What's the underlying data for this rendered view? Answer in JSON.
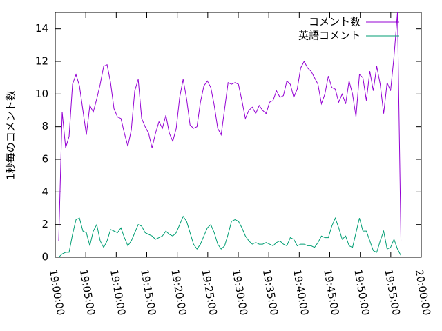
{
  "chart_data": {
    "type": "line",
    "y_label": "1秒毎のコメント数",
    "x": [
      "19:00:34",
      "19:01:08",
      "19:01:42",
      "19:02:16",
      "19:02:50",
      "19:03:24",
      "19:03:58",
      "19:04:32",
      "19:05:06",
      "19:05:40",
      "19:06:14",
      "19:06:48",
      "19:07:22",
      "19:07:56",
      "19:08:30",
      "19:09:04",
      "19:09:38",
      "19:10:12",
      "19:10:46",
      "19:11:20",
      "19:11:54",
      "19:12:28",
      "19:13:02",
      "19:13:36",
      "19:14:10",
      "19:14:44",
      "19:15:18",
      "19:15:52",
      "19:16:26",
      "19:17:00",
      "19:17:34",
      "19:18:08",
      "19:18:42",
      "19:19:16",
      "19:19:50",
      "19:20:24",
      "19:20:58",
      "19:21:32",
      "19:22:06",
      "19:22:40",
      "19:23:14",
      "19:23:48",
      "19:24:22",
      "19:24:56",
      "19:25:30",
      "19:26:04",
      "19:26:38",
      "19:27:12",
      "19:27:46",
      "19:28:20",
      "19:28:54",
      "19:29:28",
      "19:30:02",
      "19:30:36",
      "19:31:10",
      "19:31:44",
      "19:32:18",
      "19:32:52",
      "19:33:26",
      "19:34:00",
      "19:34:34",
      "19:35:08",
      "19:35:42",
      "19:36:16",
      "19:36:50",
      "19:37:24",
      "19:37:58",
      "19:38:32",
      "19:39:06",
      "19:39:40",
      "19:40:14",
      "19:40:48",
      "19:41:22",
      "19:41:56",
      "19:42:30",
      "19:43:04",
      "19:43:38",
      "19:44:12",
      "19:44:46",
      "19:45:20",
      "19:45:54",
      "19:46:28",
      "19:47:02",
      "19:47:36",
      "19:48:10",
      "19:48:44",
      "19:49:18",
      "19:49:52",
      "19:50:26",
      "19:51:00",
      "19:51:34",
      "19:52:08",
      "19:52:42",
      "19:53:16",
      "19:53:50",
      "19:54:24",
      "19:54:58",
      "19:55:32",
      "19:56:06",
      "19:56:40"
    ],
    "series": [
      {
        "name": "コメント数",
        "color": "#9400d3",
        "values": [
          1.0,
          8.9,
          6.7,
          7.4,
          10.6,
          11.2,
          10.5,
          9.0,
          7.5,
          9.3,
          8.9,
          9.7,
          10.6,
          11.7,
          11.8,
          10.7,
          9.1,
          8.6,
          8.5,
          7.6,
          6.8,
          7.8,
          10.2,
          10.9,
          8.5,
          8.0,
          7.6,
          6.7,
          7.6,
          8.3,
          7.9,
          8.7,
          7.6,
          7.1,
          7.9,
          9.8,
          10.9,
          9.7,
          8.1,
          7.9,
          8.0,
          9.5,
          10.5,
          10.8,
          10.4,
          9.3,
          7.9,
          7.5,
          9.1,
          10.7,
          10.6,
          10.7,
          10.6,
          9.6,
          8.5,
          9.0,
          9.2,
          8.8,
          9.3,
          9.0,
          8.8,
          9.5,
          9.6,
          10.2,
          9.8,
          9.9,
          10.8,
          10.6,
          9.8,
          10.3,
          11.6,
          12.0,
          11.6,
          11.4,
          11.0,
          10.6,
          9.4,
          10.0,
          11.1,
          10.4,
          10.3,
          9.5,
          10.0,
          9.4,
          10.8,
          10.0,
          8.6,
          11.2,
          11.0,
          9.6,
          11.4,
          10.2,
          11.7,
          10.6,
          8.8,
          10.7,
          10.2,
          12.3,
          15.0,
          1.0
        ]
      },
      {
        "name": "英語コメント",
        "color": "#009e73",
        "values": [
          0.0,
          0.2,
          0.3,
          0.3,
          1.4,
          2.3,
          2.4,
          1.6,
          1.5,
          0.7,
          1.6,
          2.0,
          1.0,
          0.6,
          1.0,
          1.7,
          1.6,
          1.5,
          1.8,
          1.2,
          0.7,
          1.0,
          1.5,
          2.0,
          1.9,
          1.5,
          1.4,
          1.3,
          1.1,
          1.2,
          1.3,
          1.6,
          1.4,
          1.3,
          1.5,
          2.0,
          2.5,
          2.2,
          1.5,
          0.8,
          0.5,
          0.8,
          1.3,
          1.8,
          2.0,
          1.5,
          0.8,
          0.5,
          0.7,
          1.4,
          2.2,
          2.3,
          2.2,
          1.8,
          1.3,
          1.0,
          0.8,
          0.9,
          0.8,
          0.8,
          0.9,
          0.8,
          0.7,
          0.9,
          1.0,
          0.8,
          0.7,
          1.2,
          1.1,
          0.7,
          0.8,
          0.8,
          0.7,
          0.7,
          0.6,
          0.9,
          1.3,
          1.2,
          1.2,
          1.9,
          2.4,
          1.8,
          1.1,
          1.3,
          0.7,
          0.6,
          1.5,
          2.4,
          1.6,
          1.6,
          1.0,
          0.4,
          0.3,
          1.0,
          1.6,
          0.5,
          0.6,
          1.1,
          0.5,
          0.1
        ]
      }
    ],
    "xlim": [
      "19:00:00",
      "20:00:00"
    ],
    "xticks": [
      "19:00:00",
      "19:05:00",
      "19:10:00",
      "19:15:00",
      "19:20:00",
      "19:25:00",
      "19:30:00",
      "19:35:00",
      "19:40:00",
      "19:45:00",
      "19:50:00",
      "19:55:00",
      "20:00:00"
    ],
    "ylim": [
      0,
      15
    ],
    "yticks": [
      0,
      2,
      4,
      6,
      8,
      10,
      12,
      14
    ],
    "legend": "top right"
  }
}
